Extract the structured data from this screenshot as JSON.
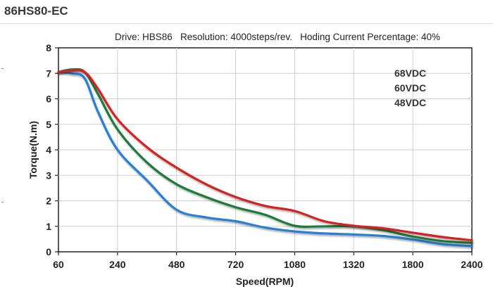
{
  "page": {
    "title": "86HS80-EC"
  },
  "chart_data": {
    "type": "line",
    "subtitle": "Drive: HBS86   Resolution: 4000steps/rev.   Hoding Current Percentage: 40%",
    "xlabel": "Speed(RPM)",
    "ylabel": "Torque(N.m)",
    "x_tick_labels": [
      "60",
      "240",
      "480",
      "720",
      "1080",
      "1320",
      "1800",
      "2400"
    ],
    "y_tick_labels": [
      "0",
      "1",
      "2",
      "3",
      "4",
      "5",
      "6",
      "7",
      "8"
    ],
    "ylim": [
      0,
      8
    ],
    "grid": true,
    "legend_position": "top-right",
    "series": [
      {
        "name": "68VDC",
        "color": "#d42222",
        "points": [
          [
            "60",
            7.05
          ],
          [
            "100",
            7.1
          ],
          [
            "140",
            7.05
          ],
          [
            "180",
            6.4
          ],
          [
            "240",
            5.2
          ],
          [
            "360",
            4.1
          ],
          [
            "480",
            3.3
          ],
          [
            "600",
            2.65
          ],
          [
            "720",
            2.15
          ],
          [
            "900",
            1.8
          ],
          [
            "1080",
            1.6
          ],
          [
            "1200",
            1.2
          ],
          [
            "1320",
            1.02
          ],
          [
            "1560",
            0.92
          ],
          [
            "1800",
            0.75
          ],
          [
            "2100",
            0.58
          ],
          [
            "2400",
            0.45
          ]
        ]
      },
      {
        "name": "60VDC",
        "color": "#1f7a3a",
        "points": [
          [
            "60",
            7.05
          ],
          [
            "100",
            7.15
          ],
          [
            "140",
            7.05
          ],
          [
            "180",
            6.2
          ],
          [
            "240",
            4.8
          ],
          [
            "360",
            3.5
          ],
          [
            "480",
            2.65
          ],
          [
            "600",
            2.15
          ],
          [
            "720",
            1.75
          ],
          [
            "900",
            1.45
          ],
          [
            "1080",
            1.02
          ],
          [
            "1200",
            1.0
          ],
          [
            "1320",
            1.0
          ],
          [
            "1560",
            0.85
          ],
          [
            "1800",
            0.6
          ],
          [
            "2100",
            0.42
          ],
          [
            "2400",
            0.35
          ]
        ]
      },
      {
        "name": "48VDC",
        "color": "#2a7fd4",
        "points": [
          [
            "60",
            7.05
          ],
          [
            "100",
            7.0
          ],
          [
            "140",
            6.8
          ],
          [
            "180",
            5.5
          ],
          [
            "240",
            4.0
          ],
          [
            "360",
            2.8
          ],
          [
            "480",
            1.65
          ],
          [
            "600",
            1.35
          ],
          [
            "720",
            1.2
          ],
          [
            "900",
            0.95
          ],
          [
            "1080",
            0.8
          ],
          [
            "1200",
            0.72
          ],
          [
            "1320",
            0.68
          ],
          [
            "1560",
            0.62
          ],
          [
            "1800",
            0.48
          ],
          [
            "2100",
            0.3
          ],
          [
            "2400",
            0.22
          ]
        ]
      }
    ]
  }
}
